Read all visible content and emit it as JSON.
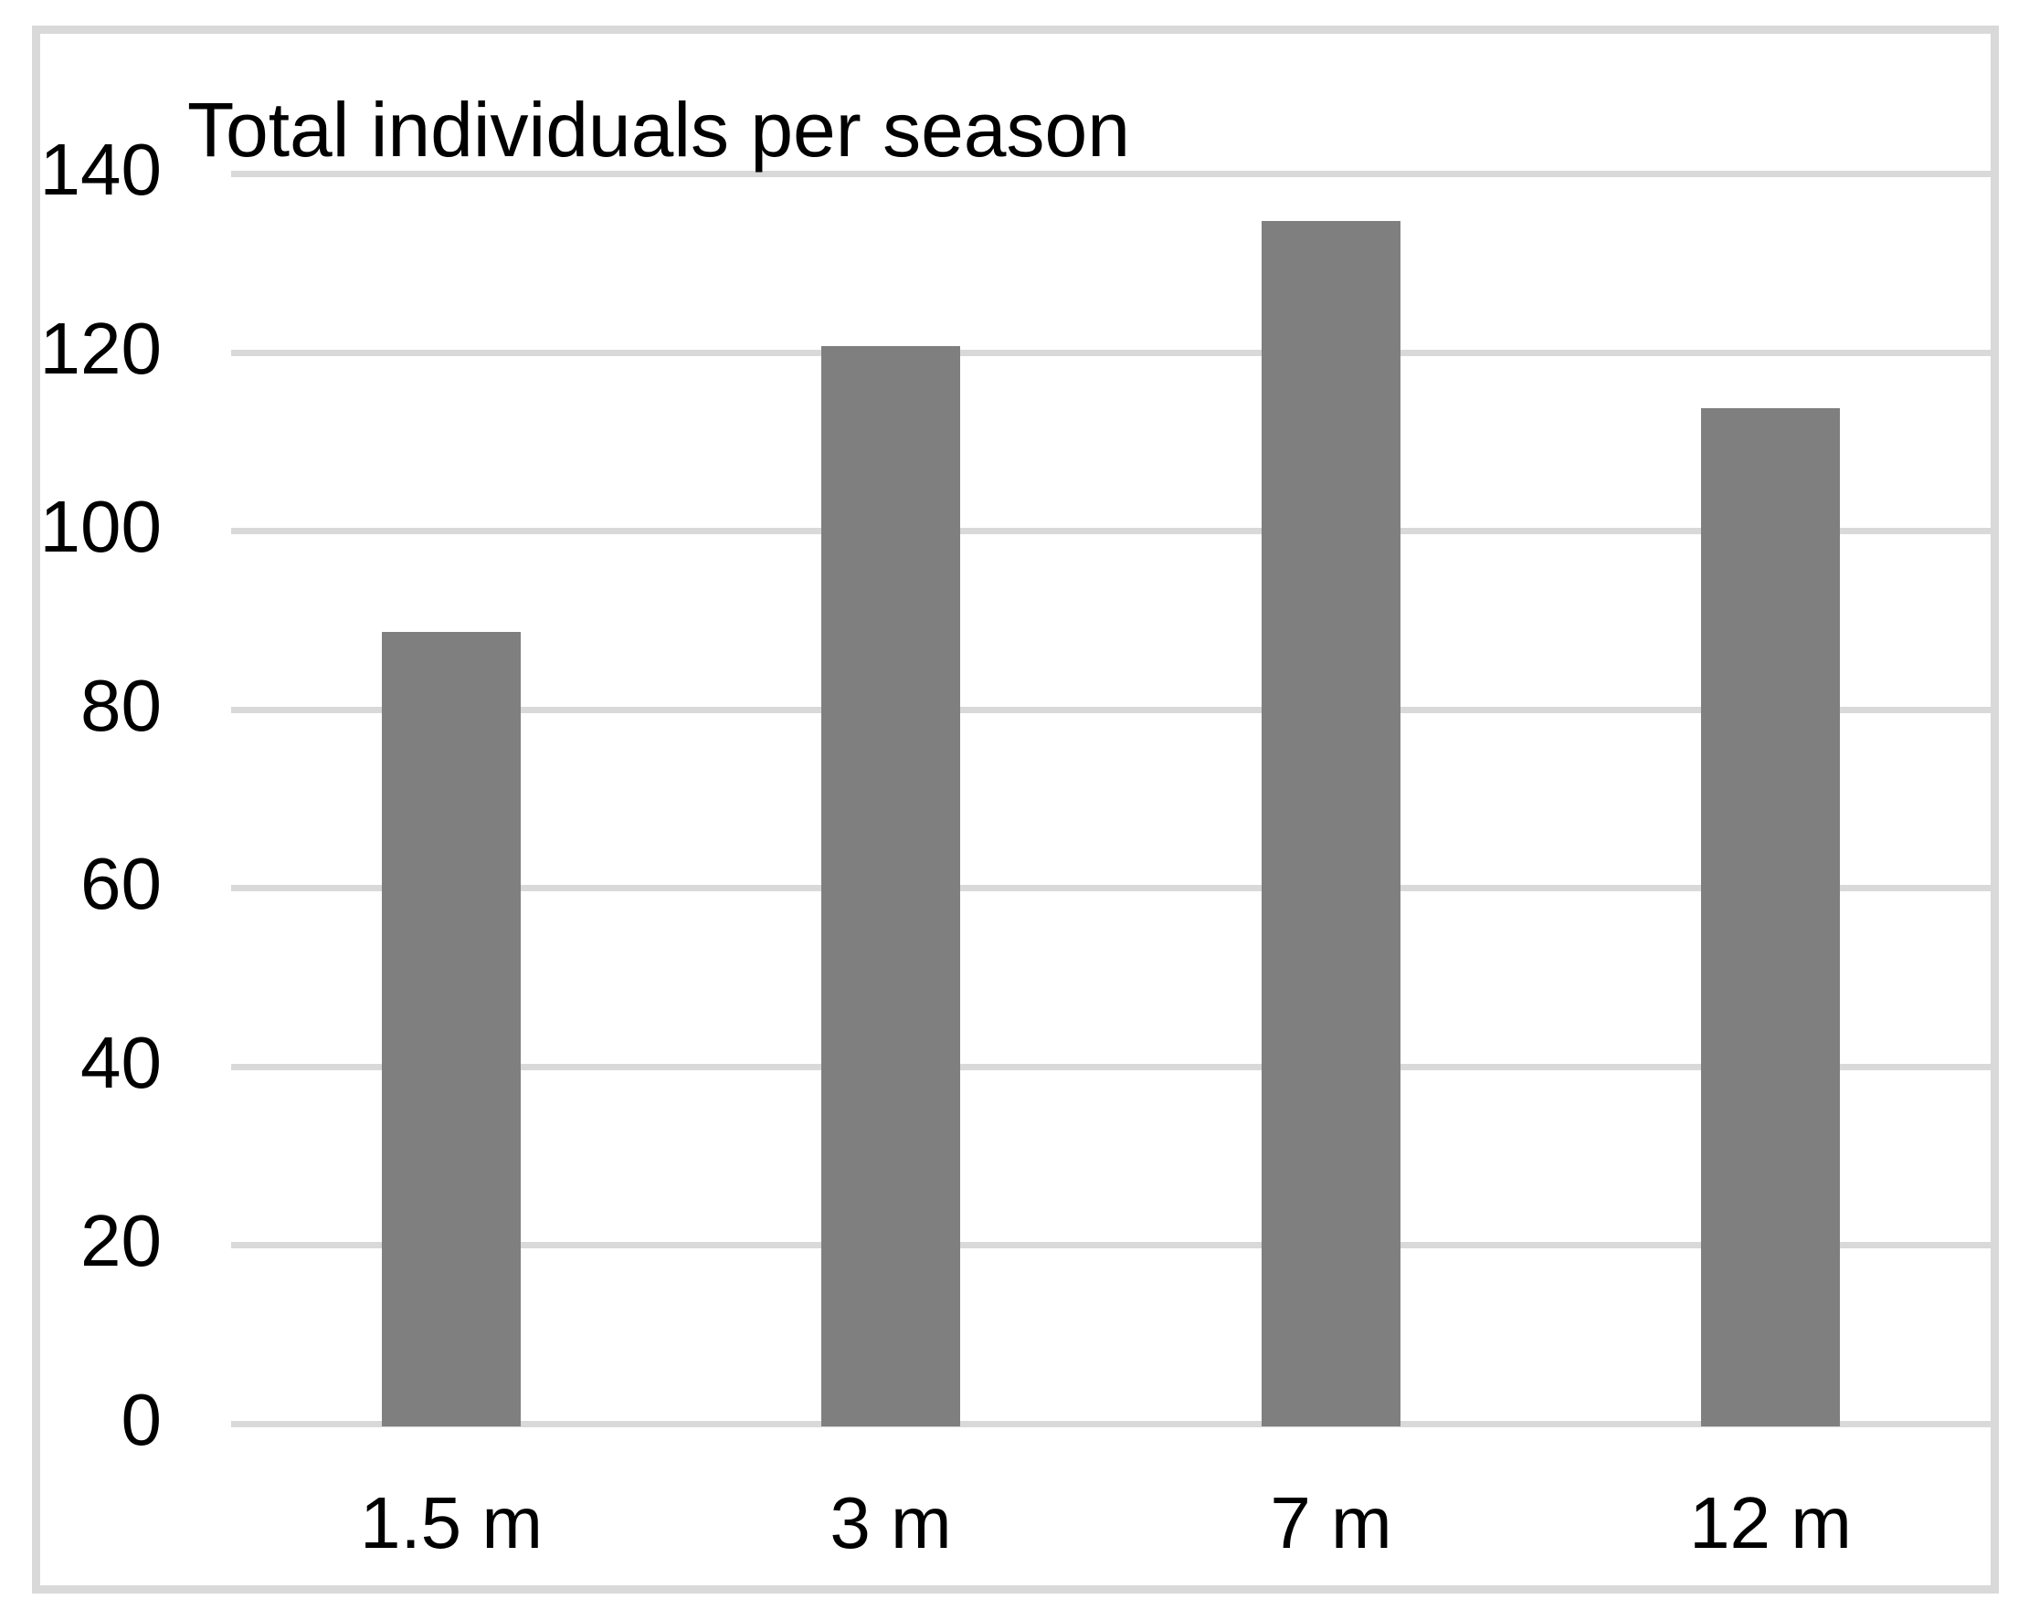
{
  "chart_data": {
    "type": "bar",
    "title": "Total individuals per season",
    "categories": [
      "1.5 m",
      "3 m",
      "7 m",
      "12 m"
    ],
    "values": [
      89,
      121,
      135,
      114
    ],
    "xlabel": "",
    "ylabel": "",
    "ylim": [
      0,
      140
    ],
    "yticks": [
      0,
      20,
      40,
      60,
      80,
      100,
      120,
      140
    ],
    "grid": true,
    "legend": false,
    "colors": {
      "bar": "#7f7f7f",
      "gridline": "#d9d9d9",
      "frame_border": "#d9d9d9",
      "text": "#000000",
      "background": "#ffffff"
    }
  }
}
